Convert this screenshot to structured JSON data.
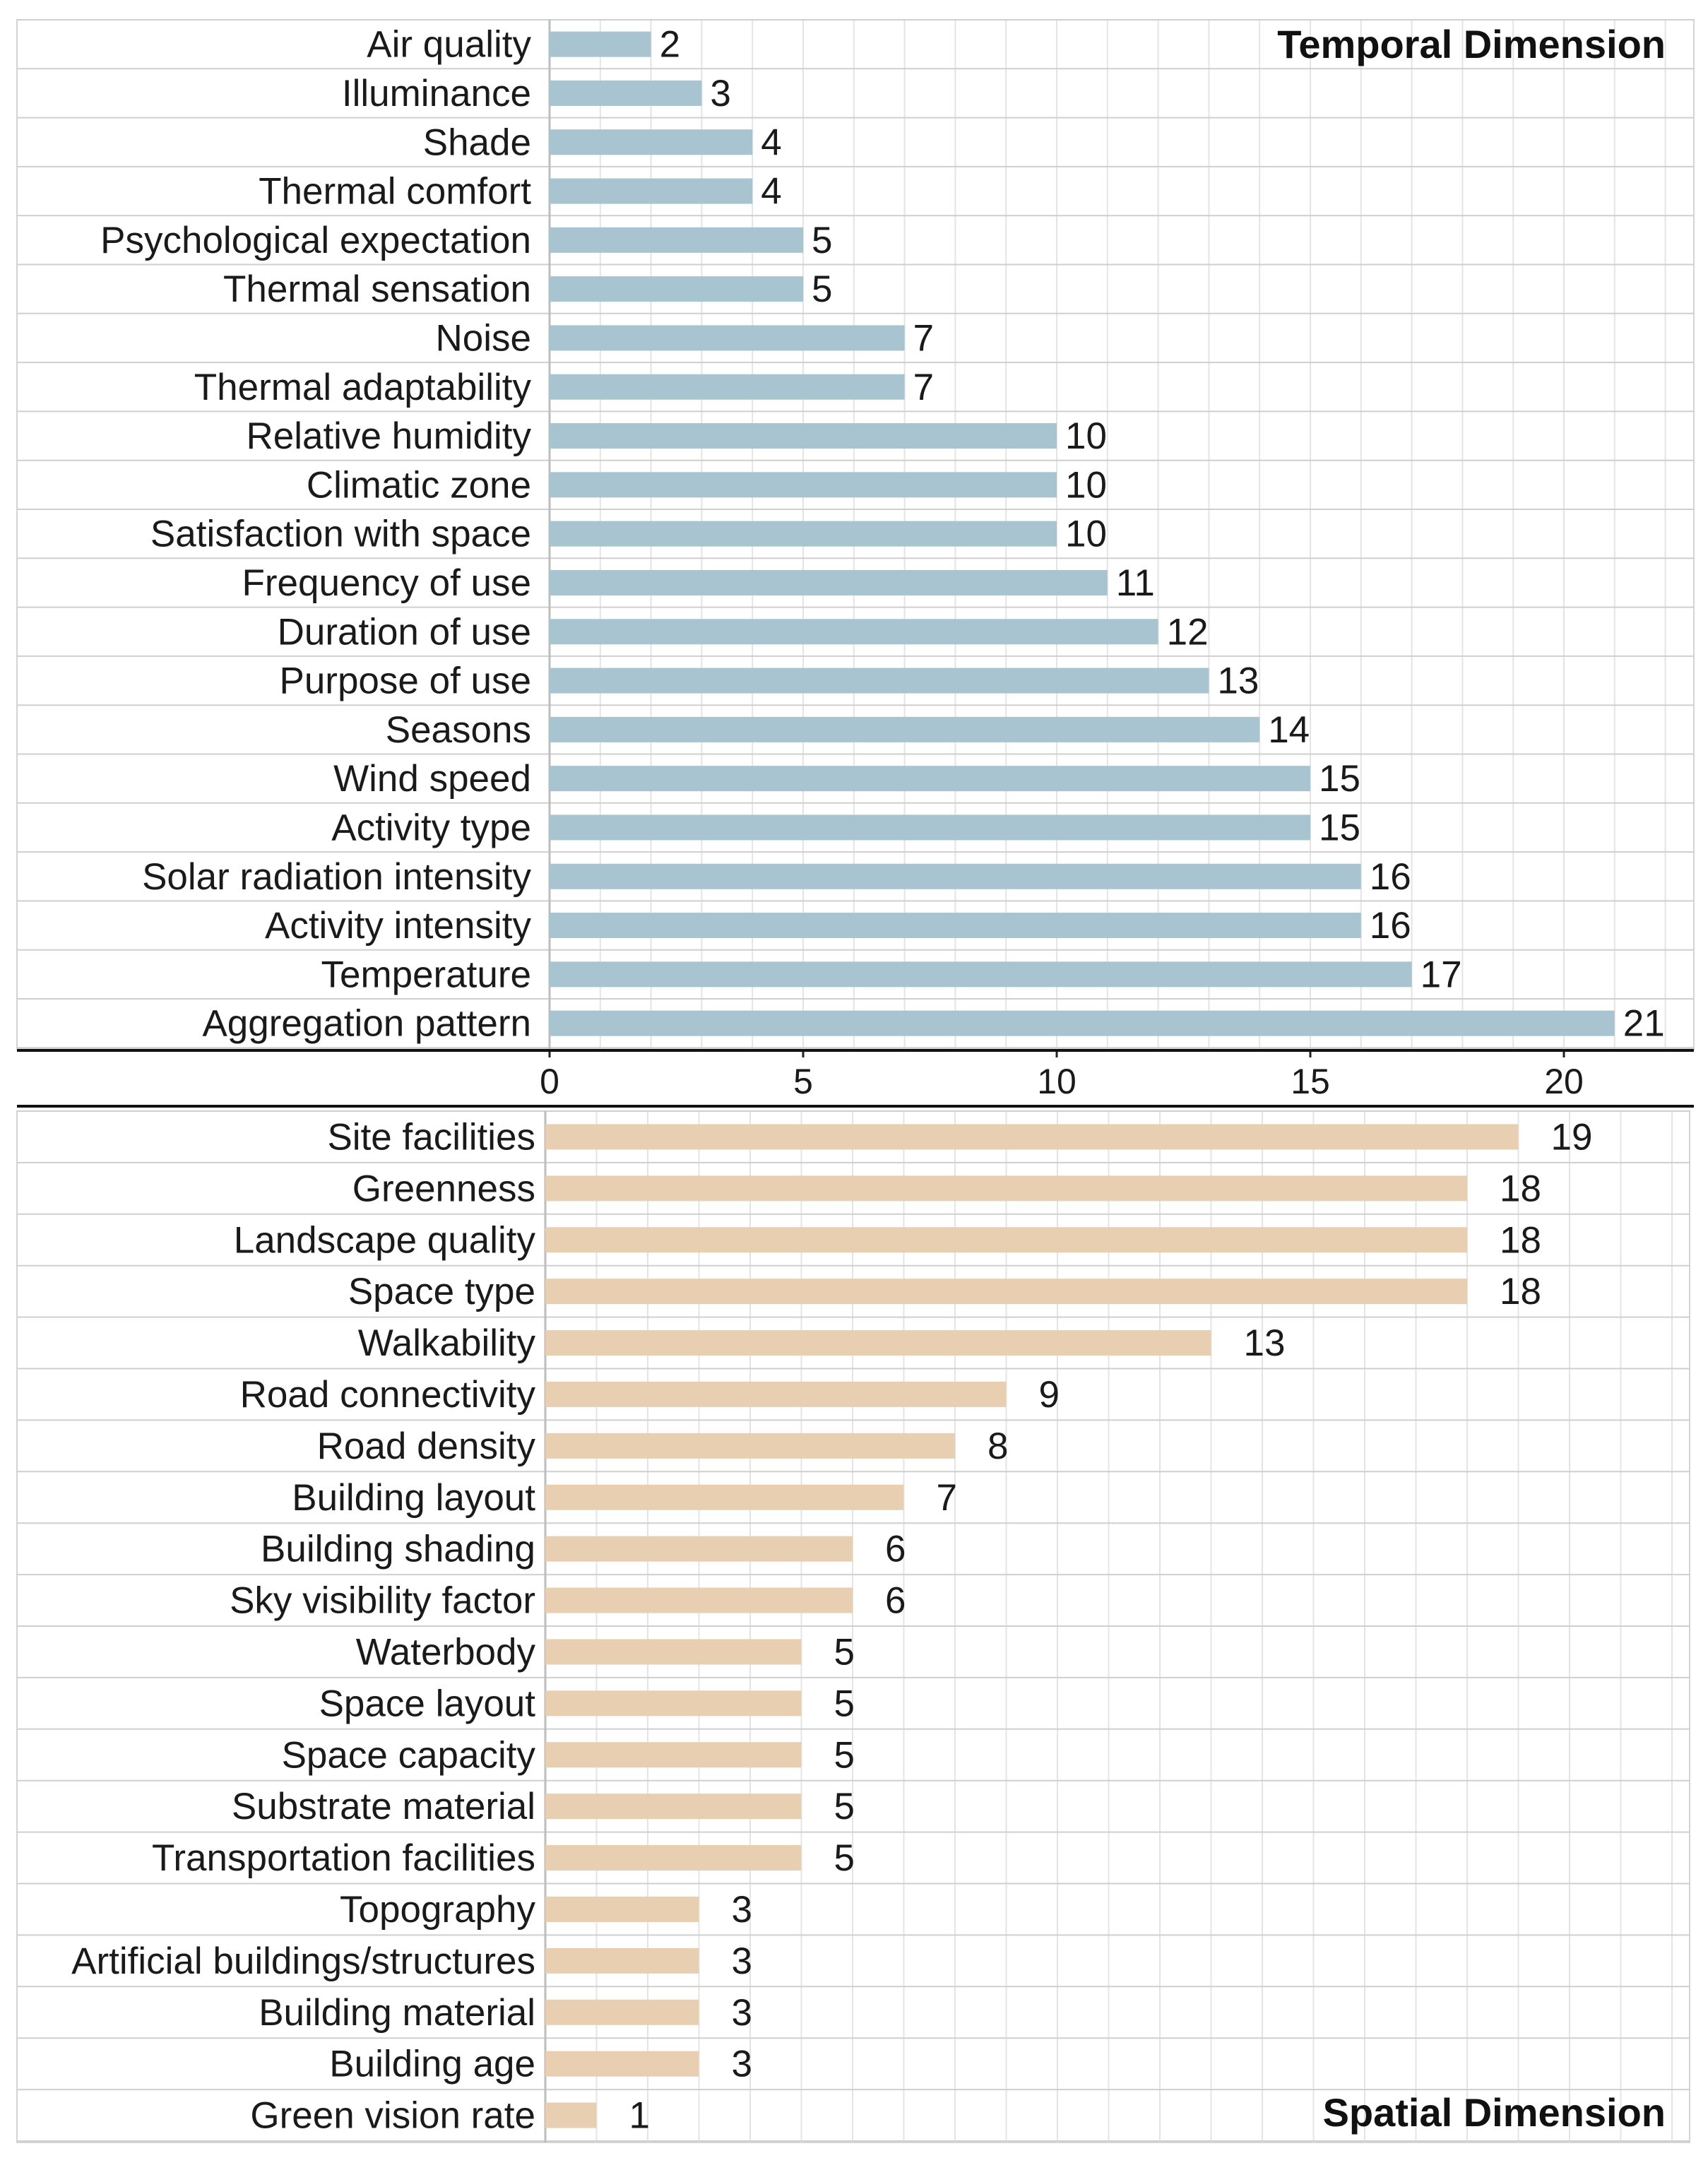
{
  "chart_data": [
    {
      "type": "bar",
      "orientation": "horizontal",
      "title": "Temporal Dimension",
      "title_position": "top-right",
      "categories": [
        "Air quality",
        "Illuminance",
        "Shade",
        "Thermal comfort",
        "Psychological expectation",
        "Thermal sensation",
        "Noise",
        "Thermal adaptability",
        "Relative humidity",
        "Climatic zone",
        "Satisfaction with space",
        "Frequency of use",
        "Duration of use",
        "Purpose of use",
        "Seasons",
        "Wind speed",
        "Activity type",
        "Solar radiation intensity",
        "Activity intensity",
        "Temperature",
        "Aggregation pattern"
      ],
      "values": [
        2,
        3,
        4,
        4,
        5,
        5,
        7,
        7,
        10,
        10,
        10,
        11,
        12,
        13,
        14,
        15,
        15,
        16,
        16,
        17,
        21
      ],
      "bar_color": "#a8c4d0",
      "xlim": [
        0,
        22.6
      ],
      "x_ticks": [
        0,
        5,
        10,
        15,
        20
      ],
      "x_tick_labels": [
        "0",
        "5",
        "10",
        "15",
        "20"
      ],
      "grid": true
    },
    {
      "type": "bar",
      "orientation": "horizontal",
      "title": "Spatial Dimension",
      "title_position": "bottom-right",
      "categories": [
        "Site facilities",
        "Greenness",
        "Landscape quality",
        "Space type",
        "Walkability",
        "Road connectivity",
        "Road density",
        "Building layout",
        "Building shading",
        "Sky visibility factor",
        "Waterbody",
        "Space layout",
        "Space capacity",
        "Substrate material",
        "Transportation facilities",
        "Topography",
        "Artificial buildings/structures",
        "Building material",
        "Building age",
        "Green vision rate"
      ],
      "values": [
        19,
        18,
        18,
        18,
        13,
        9,
        8,
        7,
        6,
        6,
        5,
        5,
        5,
        5,
        5,
        3,
        3,
        3,
        3,
        1
      ],
      "bar_color": "#e8cfb2",
      "xlim": [
        0,
        22.6
      ],
      "grid": true
    }
  ]
}
